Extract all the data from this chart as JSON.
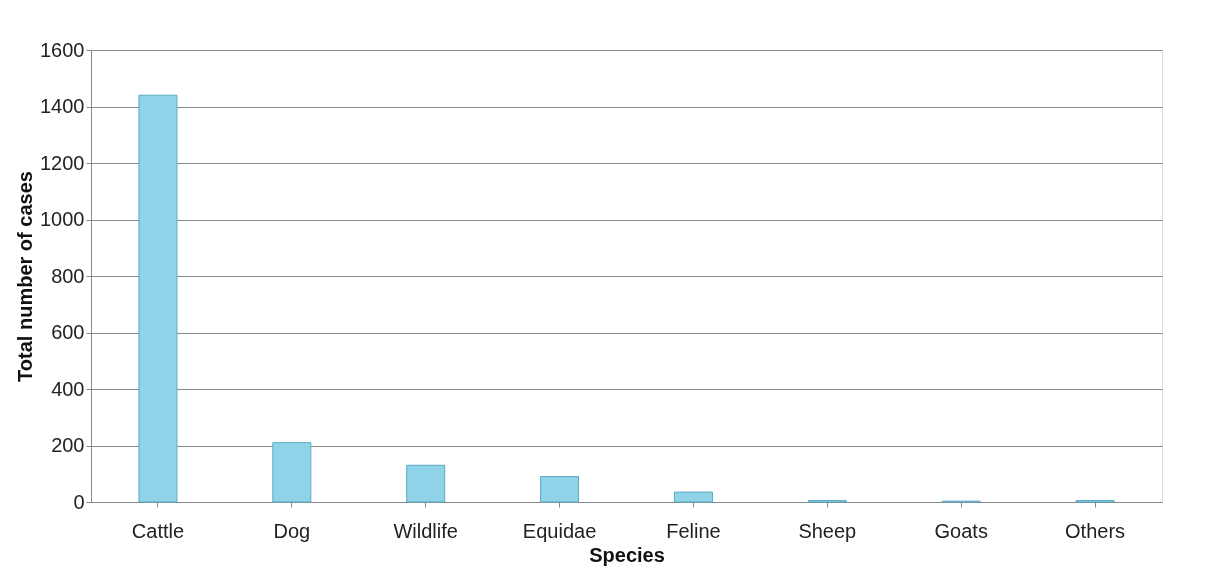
{
  "chart_data": {
    "type": "bar",
    "xlabel": "Species",
    "ylabel": "Total number of cases",
    "categories": [
      "Cattle",
      "Dog",
      "Wildlife",
      "Equidae",
      "Feline",
      "Sheep",
      "Goats",
      "Others"
    ],
    "values": [
      1440,
      210,
      130,
      90,
      35,
      5,
      3,
      5
    ],
    "color": "#8fd3e8",
    "ylim": [
      0,
      1600
    ],
    "yticks": [
      0,
      200,
      400,
      600,
      800,
      1000,
      1200,
      1400,
      1600
    ],
    "grid": "y"
  }
}
